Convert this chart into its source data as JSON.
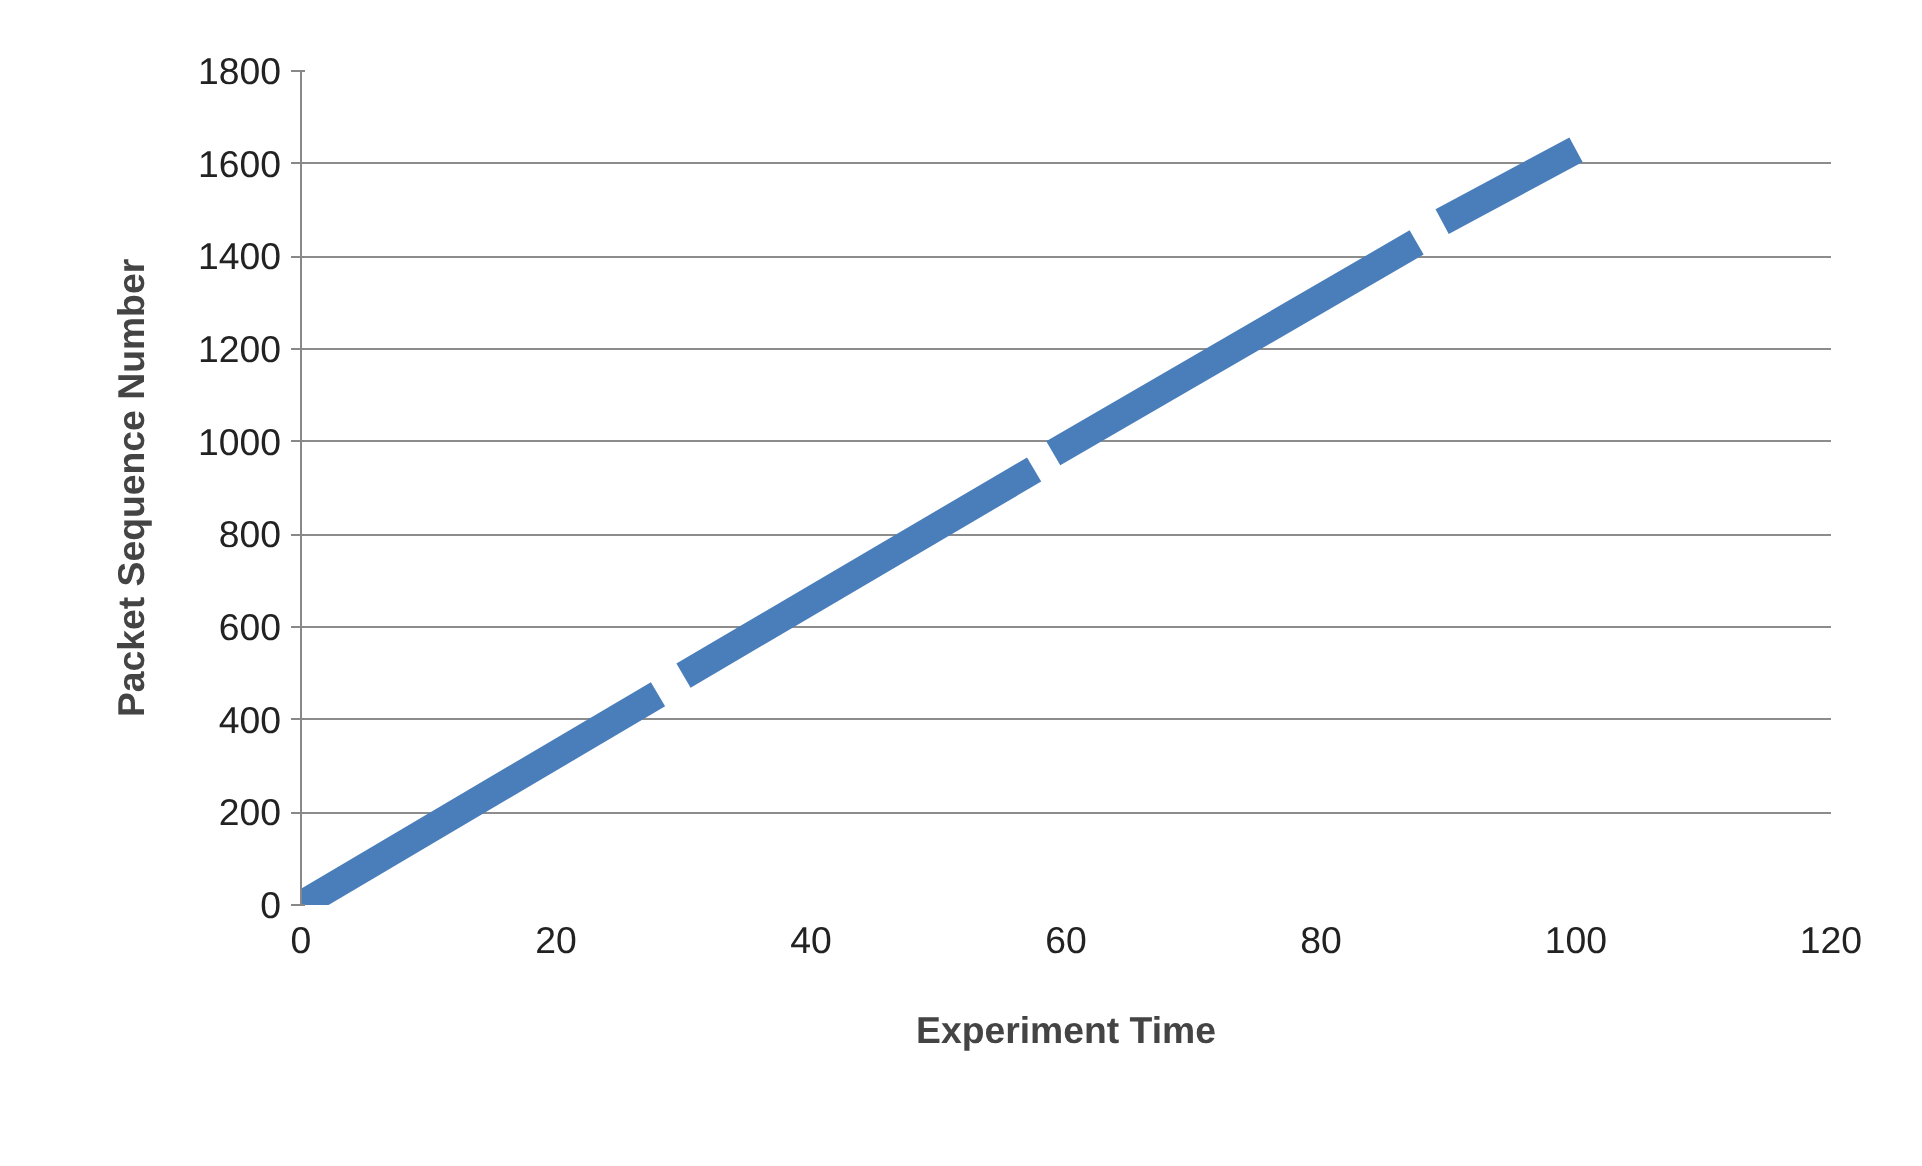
{
  "chart_data": {
    "type": "line",
    "xlabel": "Experiment Time",
    "ylabel": "Packet Sequence Number",
    "x": [
      0,
      28,
      null,
      30,
      57.5,
      null,
      59,
      87.5,
      null,
      89.5,
      100
    ],
    "series": [
      {
        "color": "#4a7ebb",
        "values": [
          0,
          455,
          null,
          495,
          940,
          null,
          975,
          1430,
          null,
          1475,
          1630
        ]
      }
    ],
    "xlim": [
      0,
      120
    ],
    "xticks": [
      0,
      20,
      40,
      60,
      80,
      100,
      120
    ],
    "ylim": [
      0,
      1800
    ],
    "yticks": [
      0,
      200,
      400,
      600,
      800,
      1000,
      1200,
      1400,
      1600,
      1800
    ],
    "grid": "y",
    "marker": "none",
    "line_style": "solid"
  }
}
